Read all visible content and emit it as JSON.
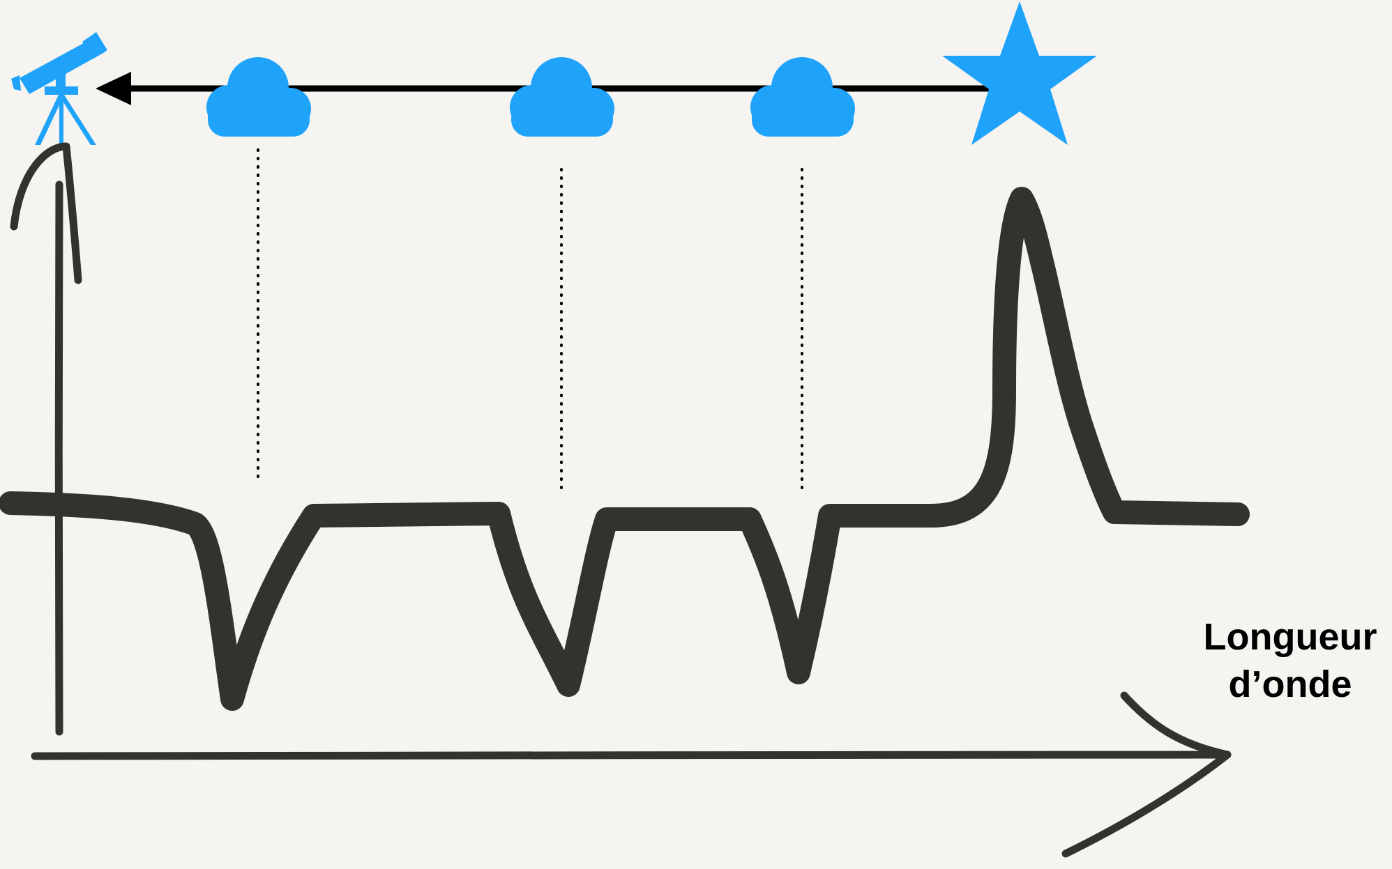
{
  "diagram": {
    "x_axis_label_line1": "Longueur",
    "x_axis_label_line2": "d’onde",
    "colors": {
      "icons": "#1ea2fa",
      "ink": "#33322d",
      "arrow": "#000000",
      "background": "#f5f4f0"
    },
    "icons": [
      "telescope-icon",
      "cloud-icon",
      "cloud-icon",
      "cloud-icon",
      "star-icon"
    ]
  }
}
